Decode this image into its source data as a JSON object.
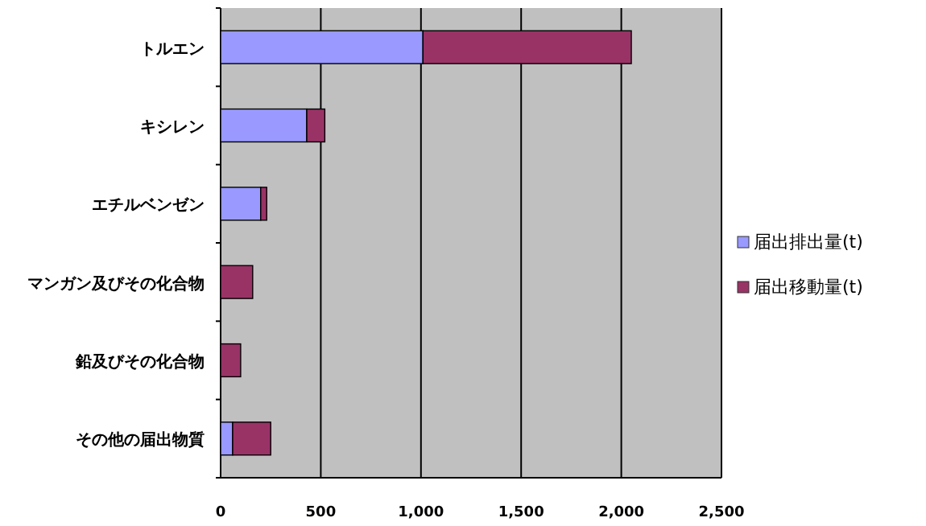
{
  "chart_data": {
    "type": "bar",
    "orientation": "horizontal",
    "stacked": true,
    "categories": [
      "トルエン",
      "キシレン",
      "エチルベンゼン",
      "マンガン及びその化合物",
      "鉛及びその化合物",
      "その他の届出物質"
    ],
    "series": [
      {
        "name": "届出排出量(t)",
        "color": "#9999ff",
        "values": [
          1010,
          430,
          200,
          0,
          0,
          60
        ]
      },
      {
        "name": "届出移動量(t)",
        "color": "#993366",
        "values": [
          1040,
          90,
          30,
          160,
          100,
          190
        ]
      }
    ],
    "xlim": [
      0,
      2500
    ],
    "xticks": [
      0,
      {
        "value": 500,
        "label": "500"
      },
      {
        "value": 1000,
        "label": "1,000"
      },
      {
        "value": 1500,
        "label": "1,500"
      },
      {
        "value": 2000,
        "label": "2,000"
      },
      {
        "value": 2500,
        "label": "2,500"
      }
    ],
    "grid": "x",
    "legend": "right"
  }
}
